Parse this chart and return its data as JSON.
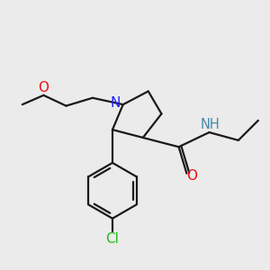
{
  "bg_color": "#ebebeb",
  "bond_color": "#1a1a1a",
  "N_color": "#2020ff",
  "O_color": "#ee1111",
  "Cl_color": "#22bb22",
  "NH_color": "#4488aa",
  "line_width": 1.6,
  "font_size": 10.5,
  "xlim": [
    0,
    10
  ],
  "ylim": [
    0.5,
    9.5
  ]
}
